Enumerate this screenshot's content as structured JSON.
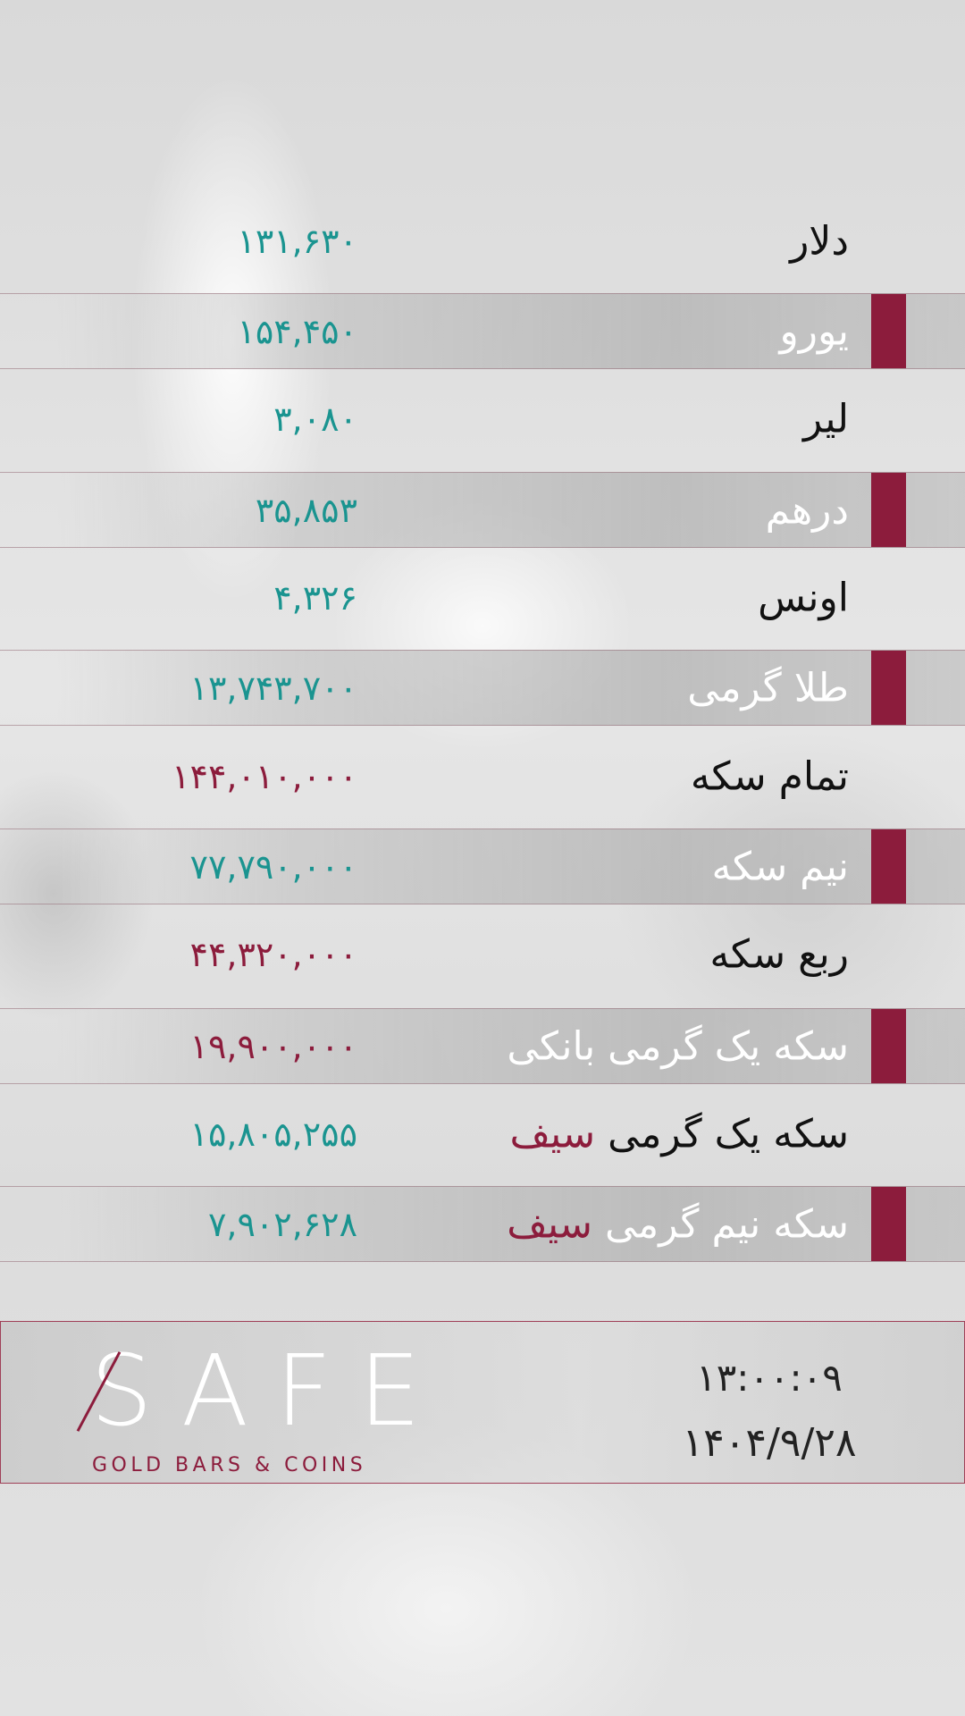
{
  "rates": [
    {
      "label": "دلار",
      "value": "۱۳۱,۶۳۰",
      "value_color": "teal"
    },
    {
      "label": "یورو",
      "value": "۱۵۴,۴۵۰",
      "value_color": "teal"
    },
    {
      "label": "لیر",
      "value": "۳,۰۸۰",
      "value_color": "teal"
    },
    {
      "label": "درهم",
      "value": "۳۵,۸۵۳",
      "value_color": "teal"
    },
    {
      "label": "اونس",
      "value": "۴,۳۲۶",
      "value_color": "teal"
    },
    {
      "label": "طلا گرمی",
      "value": "۱۳,۷۴۳,۷۰۰",
      "value_color": "teal"
    },
    {
      "label": "تمام سکه",
      "value": "۱۴۴,۰۱۰,۰۰۰",
      "value_color": "maroon"
    },
    {
      "label": "نیم سکه",
      "value": "۷۷,۷۹۰,۰۰۰",
      "value_color": "teal"
    },
    {
      "label": "ربع سکه",
      "value": "۴۴,۳۲۰,۰۰۰",
      "value_color": "maroon"
    },
    {
      "label": "سکه یک گرمی بانکی",
      "value": "۱۹,۹۰۰,۰۰۰",
      "value_color": "maroon"
    },
    {
      "label": "سکه یک گرمی",
      "label_accent": "سیف",
      "value": "۱۵,۸۰۵,۲۵۵",
      "value_color": "teal"
    },
    {
      "label": "سکه نیم گرمی",
      "label_accent": "سیف",
      "value": "۷,۹۰۲,۶۲۸",
      "value_color": "teal"
    }
  ],
  "footer": {
    "logo_word": "SAFE",
    "logo_tagline": "GOLD BARS & COINS",
    "time": "۱۳:۰۰:۰۹",
    "date": "۱۴۰۴/۹/۲۸"
  },
  "colors": {
    "teal": "#1a9490",
    "maroon": "#8c1c3c"
  }
}
